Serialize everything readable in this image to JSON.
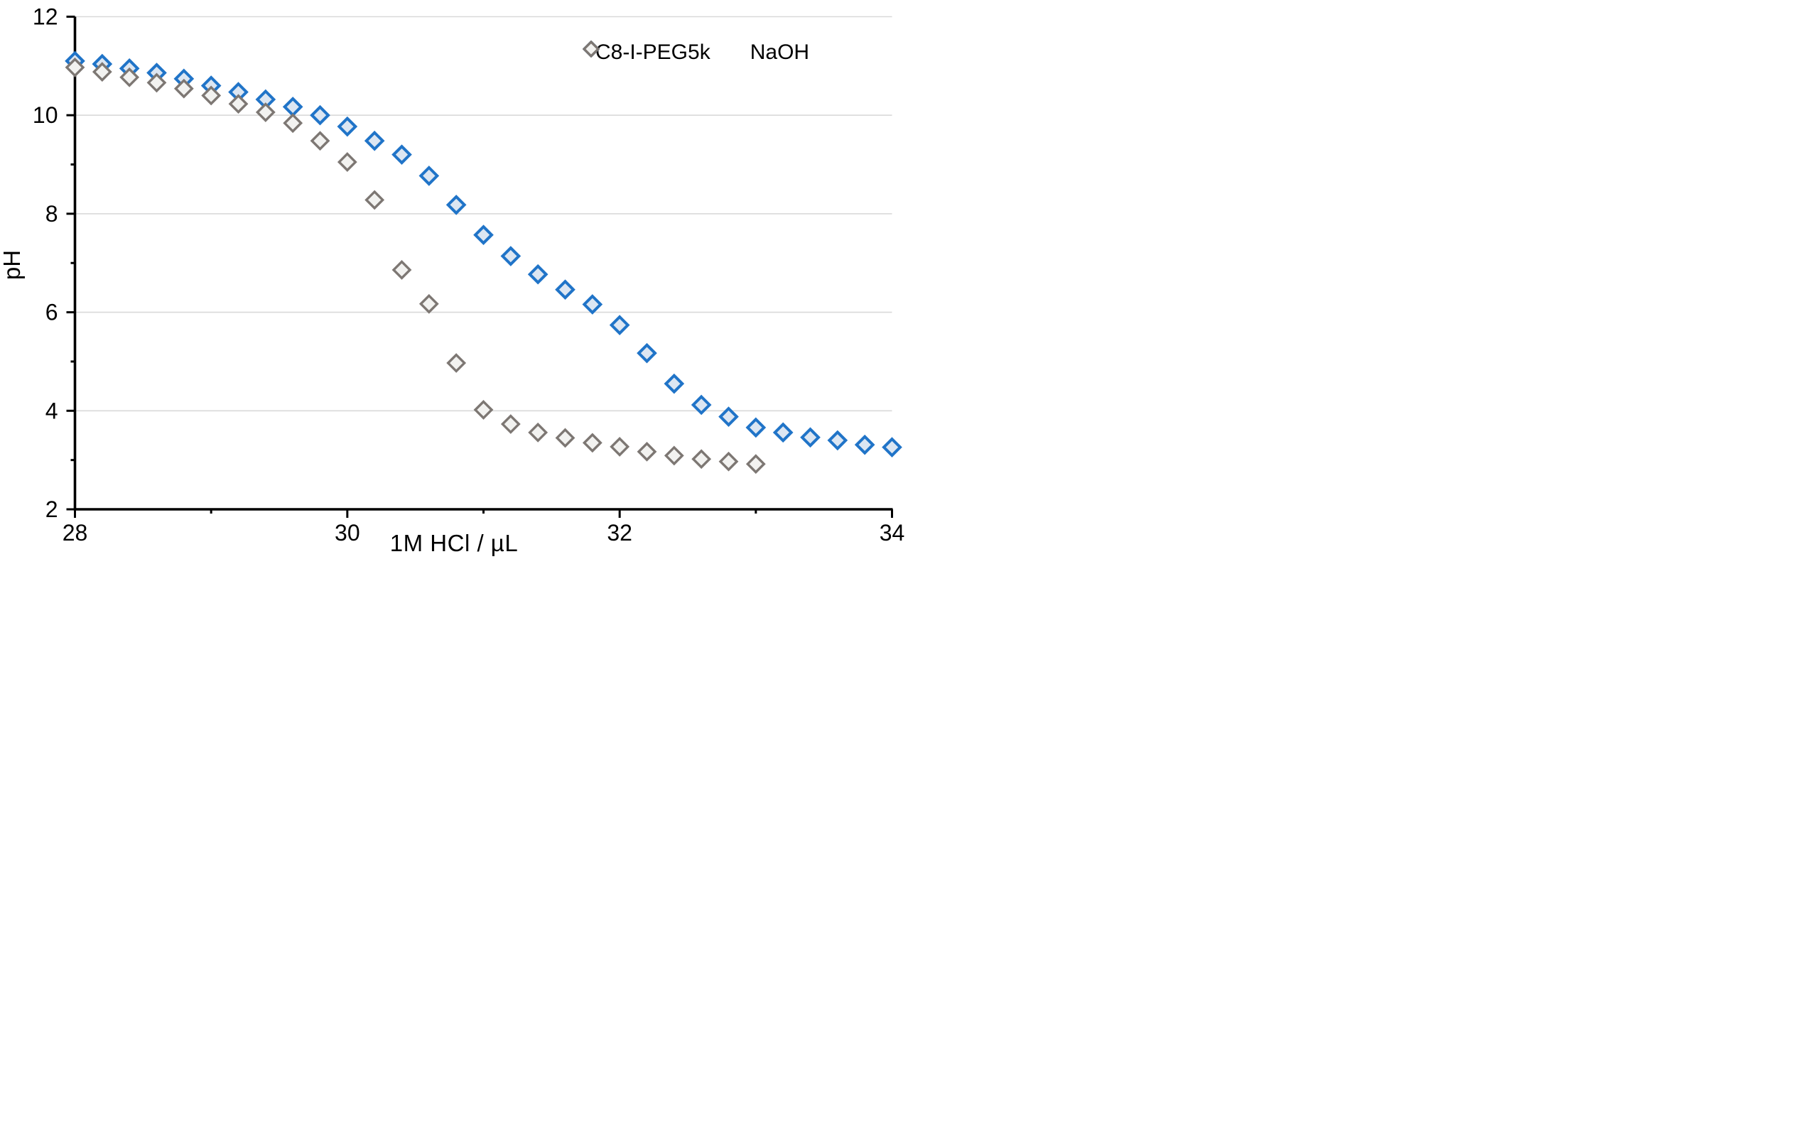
{
  "chart_data": {
    "type": "scatter",
    "title": "",
    "xlabel": "1M HCl / µL",
    "ylabel": "pH",
    "xlim": [
      28,
      34
    ],
    "ylim": [
      2,
      12
    ],
    "x_major_ticks": [
      28,
      30,
      32,
      34
    ],
    "x_minor_ticks": [
      29,
      31,
      33
    ],
    "y_major_ticks": [
      2,
      4,
      6,
      8,
      10,
      12
    ],
    "y_minor_ticks": [
      3,
      5,
      7,
      9,
      11
    ],
    "x_tick_labels": [
      "28",
      "30",
      "32",
      "34"
    ],
    "y_tick_labels": [
      "2",
      "4",
      "6",
      "8",
      "10",
      "12"
    ],
    "grid": "horizontal-major-only",
    "gridline_color": "#D9D9D9",
    "axis_color": "#000000",
    "legend_position": "top-right",
    "marker": "diamond",
    "series": [
      {
        "name": "C8-I-PEG5k",
        "stroke": "#2074C8",
        "fill": "#DCE6F2",
        "stroke_width": 4,
        "points": [
          [
            28.0,
            11.1
          ],
          [
            28.2,
            11.04
          ],
          [
            28.4,
            10.95
          ],
          [
            28.6,
            10.86
          ],
          [
            28.8,
            10.74
          ],
          [
            29.0,
            10.6
          ],
          [
            29.2,
            10.47
          ],
          [
            29.4,
            10.32
          ],
          [
            29.6,
            10.17
          ],
          [
            29.8,
            10.0
          ],
          [
            30.0,
            9.77
          ],
          [
            30.2,
            9.48
          ],
          [
            30.4,
            9.2
          ],
          [
            30.6,
            8.77
          ],
          [
            30.8,
            8.18
          ],
          [
            31.0,
            7.57
          ],
          [
            31.2,
            7.14
          ],
          [
            31.4,
            6.77
          ],
          [
            31.6,
            6.46
          ],
          [
            31.8,
            6.16
          ],
          [
            32.0,
            5.74
          ],
          [
            32.2,
            5.17
          ],
          [
            32.4,
            4.55
          ],
          [
            32.6,
            4.12
          ],
          [
            32.8,
            3.88
          ],
          [
            33.0,
            3.66
          ],
          [
            33.2,
            3.56
          ],
          [
            33.4,
            3.46
          ],
          [
            33.6,
            3.4
          ],
          [
            33.8,
            3.31
          ],
          [
            34.0,
            3.26
          ]
        ]
      },
      {
        "name": "NaOH",
        "stroke": "#7D7773",
        "fill": "#F2F2F0",
        "stroke_width": 3.4,
        "points": [
          [
            28.0,
            10.97
          ],
          [
            28.2,
            10.88
          ],
          [
            28.4,
            10.77
          ],
          [
            28.6,
            10.66
          ],
          [
            28.8,
            10.54
          ],
          [
            29.0,
            10.4
          ],
          [
            29.2,
            10.23
          ],
          [
            29.4,
            10.06
          ],
          [
            29.6,
            9.84
          ],
          [
            29.8,
            9.48
          ],
          [
            30.0,
            9.05
          ],
          [
            30.2,
            8.28
          ],
          [
            30.4,
            6.86
          ],
          [
            30.6,
            6.17
          ],
          [
            30.8,
            4.97
          ],
          [
            31.0,
            4.02
          ],
          [
            31.2,
            3.73
          ],
          [
            31.4,
            3.56
          ],
          [
            31.6,
            3.45
          ],
          [
            31.8,
            3.35
          ],
          [
            32.0,
            3.27
          ],
          [
            32.2,
            3.17
          ],
          [
            32.4,
            3.09
          ],
          [
            32.6,
            3.02
          ],
          [
            32.8,
            2.97
          ],
          [
            33.0,
            2.92
          ]
        ]
      }
    ]
  }
}
